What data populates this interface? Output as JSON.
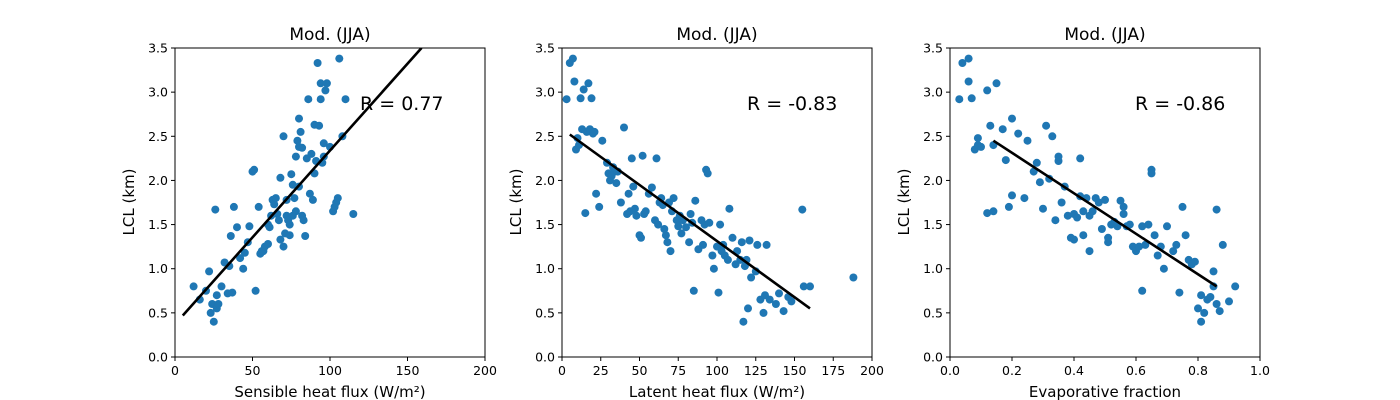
{
  "chart_data": [
    {
      "type": "scatter",
      "title": "Mod. (JJA)",
      "xlabel": "Sensible heat flux (W/m²)",
      "ylabel": "LCL (km)",
      "xlim": [
        0,
        200
      ],
      "ylim": [
        0,
        3.5
      ],
      "xticks": [
        "0",
        "50",
        "100",
        "150",
        "200"
      ],
      "yticks": [
        "0.0",
        "0.5",
        "1.0",
        "1.5",
        "2.0",
        "2.5",
        "3.0",
        "3.5"
      ],
      "annotation": "R = 0.77",
      "point_color": "#1f77b4",
      "line_color": "#000000",
      "fit_line": {
        "x": [
          5,
          159
        ],
        "y": [
          0.47,
          3.5
        ]
      },
      "x": [
        12,
        16,
        20,
        22,
        23,
        24,
        25,
        26,
        27,
        27,
        28,
        30,
        32,
        34,
        35,
        36,
        37,
        38,
        40,
        42,
        44,
        45,
        47,
        48,
        50,
        51,
        52,
        54,
        55,
        56,
        57,
        58,
        60,
        60,
        61,
        62,
        63,
        64,
        65,
        66,
        67,
        68,
        68,
        70,
        70,
        71,
        72,
        72,
        73,
        74,
        74,
        75,
        76,
        76,
        77,
        78,
        78,
        79,
        80,
        80,
        80,
        81,
        82,
        82,
        83,
        84,
        85,
        86,
        87,
        88,
        89,
        90,
        90,
        91,
        92,
        93,
        94,
        94,
        95,
        96,
        96,
        97,
        98,
        100,
        102,
        103,
        104,
        105,
        106,
        108,
        110,
        115
      ],
      "y": [
        0.8,
        0.65,
        0.75,
        0.97,
        0.5,
        0.6,
        0.4,
        1.67,
        0.55,
        0.7,
        0.6,
        0.8,
        1.07,
        0.72,
        1.03,
        1.37,
        0.73,
        1.7,
        1.47,
        1.12,
        1.0,
        1.18,
        1.3,
        1.48,
        2.1,
        2.12,
        0.75,
        1.7,
        1.17,
        1.2,
        1.2,
        1.25,
        1.5,
        1.28,
        1.47,
        1.6,
        1.78,
        1.73,
        1.8,
        1.62,
        1.55,
        1.33,
        2.03,
        1.25,
        2.5,
        1.4,
        1.78,
        1.6,
        1.55,
        1.5,
        1.38,
        2.07,
        1.95,
        1.6,
        1.8,
        2.27,
        1.65,
        2.45,
        2.7,
        2.38,
        1.93,
        2.55,
        1.6,
        2.37,
        1.55,
        1.37,
        2.25,
        2.92,
        1.85,
        2.3,
        1.78,
        2.63,
        2.08,
        2.22,
        3.33,
        2.62,
        3.1,
        2.92,
        2.2,
        2.42,
        2.27,
        3.02,
        3.1,
        2.38,
        1.65,
        1.7,
        1.75,
        1.8,
        3.38,
        2.5,
        2.92,
        1.62
      ]
    },
    {
      "type": "scatter",
      "title": "Mod. (JJA)",
      "xlabel": "Latent heat flux (W/m²)",
      "ylabel": "LCL (km)",
      "xlim": [
        0,
        200
      ],
      "ylim": [
        0,
        3.5
      ],
      "xticks": [
        "0",
        "25",
        "50",
        "75",
        "100",
        "125",
        "150",
        "175",
        "200"
      ],
      "yticks": [
        "0.0",
        "0.5",
        "1.0",
        "1.5",
        "2.0",
        "2.5",
        "3.0",
        "3.5"
      ],
      "annotation": "R = -0.83",
      "point_color": "#1f77b4",
      "line_color": "#000000",
      "fit_line": {
        "x": [
          5,
          160
        ],
        "y": [
          2.52,
          0.55
        ]
      },
      "x": [
        3,
        5,
        7,
        8,
        9,
        10,
        11,
        12,
        13,
        14,
        15,
        16,
        17,
        18,
        19,
        20,
        21,
        22,
        24,
        26,
        29,
        30,
        31,
        32,
        33,
        34,
        35,
        36,
        38,
        40,
        42,
        43,
        44,
        45,
        46,
        47,
        48,
        50,
        51,
        52,
        53,
        54,
        56,
        58,
        60,
        61,
        62,
        63,
        64,
        65,
        66,
        67,
        68,
        69,
        70,
        71,
        72,
        74,
        75,
        76,
        77,
        78,
        80,
        82,
        83,
        84,
        85,
        86,
        88,
        90,
        91,
        92,
        93,
        94,
        95,
        97,
        98,
        100,
        101,
        102,
        103,
        104,
        105,
        107,
        108,
        110,
        112,
        113,
        115,
        116,
        117,
        118,
        119,
        120,
        121,
        122,
        125,
        126,
        128,
        130,
        131,
        132,
        134,
        138,
        140,
        143,
        146,
        148,
        155,
        156,
        160,
        188
      ],
      "y": [
        2.92,
        3.33,
        3.38,
        3.12,
        2.35,
        2.48,
        2.4,
        2.93,
        2.58,
        3.03,
        1.63,
        2.55,
        3.1,
        2.58,
        2.93,
        2.53,
        2.55,
        1.85,
        1.7,
        2.45,
        2.2,
        2.08,
        2.0,
        2.05,
        2.15,
        2.1,
        1.97,
        2.1,
        1.75,
        2.6,
        1.62,
        1.85,
        1.65,
        2.25,
        1.93,
        1.68,
        1.6,
        1.38,
        1.35,
        2.28,
        1.62,
        1.65,
        1.85,
        1.92,
        1.55,
        2.25,
        1.5,
        1.75,
        1.8,
        1.72,
        1.45,
        1.38,
        1.3,
        1.75,
        1.2,
        1.65,
        1.8,
        1.55,
        1.48,
        1.6,
        1.4,
        1.55,
        1.47,
        1.3,
        1.62,
        1.52,
        0.75,
        1.77,
        1.22,
        1.55,
        1.27,
        1.5,
        2.12,
        2.08,
        1.52,
        1.15,
        1.0,
        1.25,
        0.73,
        1.5,
        1.2,
        1.27,
        1.15,
        1.1,
        1.68,
        1.35,
        1.05,
        1.2,
        1.1,
        1.3,
        0.4,
        1.03,
        1.1,
        0.55,
        1.32,
        0.9,
        0.97,
        1.27,
        0.65,
        0.5,
        0.7,
        1.27,
        0.65,
        0.6,
        0.72,
        0.52,
        0.68,
        0.63,
        1.67,
        0.8,
        0.8,
        0.9
      ]
    },
    {
      "type": "scatter",
      "title": "Mod. (JJA)",
      "xlabel": "Evaporative fraction",
      "ylabel": "LCL (km)",
      "xlim": [
        0,
        1.0
      ],
      "ylim": [
        0,
        3.5
      ],
      "xticks": [
        "0.0",
        "0.2",
        "0.4",
        "0.6",
        "0.8",
        "1.0"
      ],
      "yticks": [
        "0.0",
        "0.5",
        "1.0",
        "1.5",
        "2.0",
        "2.5",
        "3.0",
        "3.5"
      ],
      "annotation": "R = -0.86",
      "point_color": "#1f77b4",
      "line_color": "#000000",
      "fit_line": {
        "x": [
          0.14,
          0.86
        ],
        "y": [
          2.45,
          0.8
        ]
      },
      "x": [
        0.03,
        0.04,
        0.06,
        0.06,
        0.07,
        0.08,
        0.09,
        0.09,
        0.1,
        0.12,
        0.12,
        0.13,
        0.14,
        0.14,
        0.15,
        0.17,
        0.18,
        0.19,
        0.2,
        0.2,
        0.22,
        0.24,
        0.25,
        0.27,
        0.28,
        0.29,
        0.3,
        0.31,
        0.32,
        0.33,
        0.34,
        0.35,
        0.35,
        0.36,
        0.37,
        0.38,
        0.39,
        0.4,
        0.4,
        0.41,
        0.42,
        0.42,
        0.43,
        0.43,
        0.44,
        0.45,
        0.45,
        0.46,
        0.47,
        0.48,
        0.49,
        0.5,
        0.51,
        0.51,
        0.52,
        0.53,
        0.54,
        0.55,
        0.56,
        0.56,
        0.57,
        0.58,
        0.59,
        0.6,
        0.61,
        0.62,
        0.62,
        0.63,
        0.64,
        0.65,
        0.65,
        0.66,
        0.67,
        0.68,
        0.69,
        0.7,
        0.72,
        0.73,
        0.74,
        0.75,
        0.76,
        0.77,
        0.78,
        0.79,
        0.8,
        0.81,
        0.81,
        0.82,
        0.83,
        0.84,
        0.85,
        0.85,
        0.86,
        0.86,
        0.87,
        0.88,
        0.9,
        0.92
      ],
      "y": [
        2.92,
        3.33,
        3.38,
        3.12,
        2.93,
        2.35,
        2.48,
        2.4,
        2.38,
        3.02,
        1.63,
        2.62,
        1.65,
        2.4,
        3.1,
        2.58,
        2.23,
        1.7,
        1.83,
        2.7,
        2.53,
        1.8,
        2.45,
        2.1,
        2.2,
        1.98,
        1.68,
        2.62,
        2.02,
        2.5,
        1.55,
        2.22,
        2.27,
        1.75,
        1.93,
        1.6,
        1.35,
        1.33,
        1.62,
        1.58,
        2.25,
        1.82,
        1.65,
        1.38,
        1.8,
        1.2,
        1.6,
        1.65,
        1.8,
        1.75,
        1.45,
        1.78,
        1.3,
        1.35,
        1.5,
        1.53,
        1.48,
        1.77,
        1.7,
        1.62,
        1.48,
        1.5,
        1.25,
        1.2,
        1.25,
        0.75,
        1.48,
        1.27,
        1.5,
        2.12,
        2.08,
        1.38,
        1.15,
        1.25,
        1.0,
        1.48,
        1.2,
        1.27,
        0.73,
        1.7,
        1.38,
        1.1,
        1.05,
        1.08,
        0.55,
        0.4,
        0.7,
        0.5,
        0.65,
        0.68,
        0.8,
        0.97,
        0.6,
        1.67,
        0.52,
        1.27,
        0.63,
        0.8
      ]
    }
  ]
}
